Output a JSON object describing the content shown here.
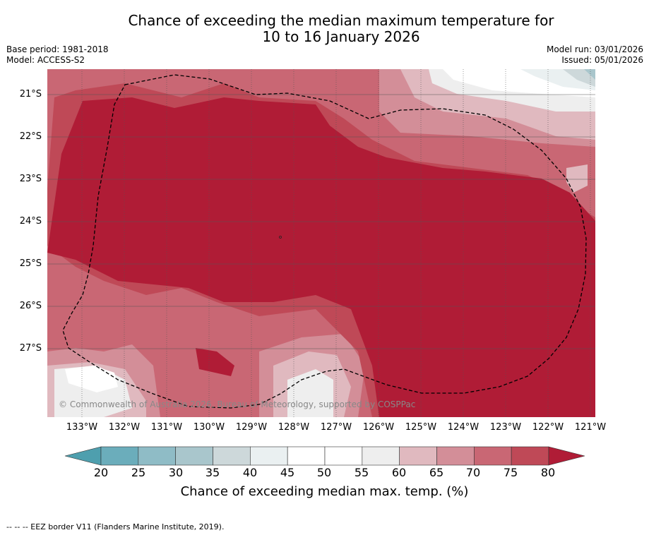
{
  "title_line1": "Chance of exceeding the median maximum temperature for",
  "title_line2": "10 to 16 January 2026",
  "base_period": "Base period: 1981-2018",
  "model": "Model: ACCESS-S2",
  "model_run": "Model run: 03/01/2026",
  "issued": "Issued: 05/01/2026",
  "copyright": "© Commonwealth of Australia 2026, Bureau of Meteorology, supported by COSPPac",
  "lat_labels": [
    "21°S",
    "22°S",
    "23°S",
    "24°S",
    "25°S",
    "26°S",
    "27°S"
  ],
  "lon_labels": [
    "133°W",
    "132°W",
    "131°W",
    "130°W",
    "129°W",
    "128°W",
    "127°W",
    "126°W",
    "125°W",
    "124°W",
    "123°W",
    "122°W",
    "121°W"
  ],
  "colorbar": {
    "ticks": [
      "20",
      "25",
      "30",
      "35",
      "40",
      "45",
      "50",
      "55",
      "60",
      "65",
      "70",
      "75",
      "80"
    ],
    "colors": [
      "#6badbb",
      "#8fbcc6",
      "#a9c6cc",
      "#cdd8da",
      "#eaf0f1",
      "#ffffff",
      "#ffffff",
      "#eeeeee",
      "#e0b9bf",
      "#d38e98",
      "#c96774",
      "#bf4957"
    ],
    "under_color": "#4e9fae",
    "over_color": "#b01c36",
    "label": "Chance of exceeding median max. temp. (%)"
  },
  "footer": "--  --  -- EEZ border V11 (Flanders Marine Institute, 2019)."
}
